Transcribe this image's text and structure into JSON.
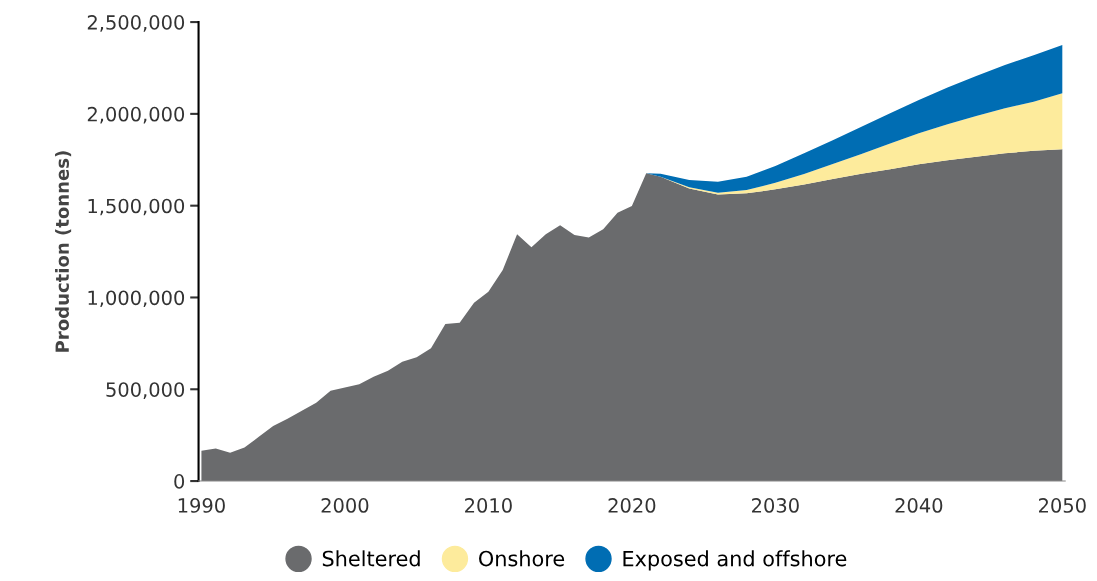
{
  "chart_data": {
    "type": "area",
    "stacked": true,
    "ylabel": "Production (tonnes)",
    "x": [
      1990,
      1991,
      1992,
      1993,
      1994,
      1995,
      1996,
      1997,
      1998,
      1999,
      2000,
      2001,
      2002,
      2003,
      2004,
      2005,
      2006,
      2007,
      2008,
      2009,
      2010,
      2011,
      2012,
      2013,
      2014,
      2015,
      2016,
      2017,
      2018,
      2019,
      2020,
      2021,
      2022,
      2024,
      2026,
      2028,
      2030,
      2032,
      2034,
      2036,
      2038,
      2040,
      2042,
      2044,
      2046,
      2048,
      2050
    ],
    "series": [
      {
        "name": "Sheltered",
        "color": "#6a6b6d",
        "values": [
          165000,
          178000,
          154000,
          183000,
          241000,
          300000,
          340000,
          383000,
          427000,
          492000,
          510000,
          528000,
          568000,
          601000,
          650000,
          674000,
          723000,
          855000,
          862000,
          971000,
          1031000,
          1149000,
          1345000,
          1273000,
          1345000,
          1394000,
          1340000,
          1327000,
          1371000,
          1461000,
          1498000,
          1676000,
          1658000,
          1594000,
          1561000,
          1567000,
          1589000,
          1616000,
          1645000,
          1674000,
          1699000,
          1725000,
          1748000,
          1767000,
          1785000,
          1799000,
          1807000
        ]
      },
      {
        "name": "Onshore",
        "color": "#fdeb9c",
        "values": [
          null,
          null,
          null,
          null,
          null,
          null,
          null,
          null,
          null,
          null,
          null,
          null,
          null,
          null,
          null,
          null,
          null,
          null,
          null,
          null,
          null,
          null,
          null,
          null,
          null,
          null,
          null,
          null,
          null,
          null,
          null,
          0,
          0,
          6000,
          10000,
          18000,
          36000,
          56000,
          82000,
          107000,
          140000,
          169000,
          195000,
          221000,
          245000,
          267000,
          305000
        ]
      },
      {
        "name": "Exposed and offshore",
        "color": "#006db3",
        "values": [
          null,
          null,
          null,
          null,
          null,
          null,
          null,
          null,
          null,
          null,
          null,
          null,
          null,
          null,
          null,
          null,
          null,
          null,
          null,
          null,
          null,
          null,
          null,
          null,
          null,
          null,
          null,
          null,
          null,
          null,
          null,
          0,
          16000,
          40000,
          59000,
          73000,
          91000,
          113000,
          130000,
          149000,
          164000,
          181000,
          201000,
          218000,
          236000,
          254000,
          263000
        ]
      }
    ],
    "xlim": [
      1989.8,
      2050.2
    ],
    "xticks": [
      1990,
      2000,
      2010,
      2020,
      2030,
      2040,
      2050
    ],
    "ylim": [
      0,
      2500000
    ],
    "yticks": [
      0,
      {
        "value": 500000,
        "label": "500,000"
      },
      {
        "value": 1000000,
        "label": "1,000,000"
      },
      {
        "value": 1500000,
        "label": "1,500,000"
      },
      {
        "value": 2000000,
        "label": "2,000,000"
      },
      {
        "value": 2500000,
        "label": "2,500,000"
      }
    ],
    "grid": false,
    "legend": "bottom"
  }
}
